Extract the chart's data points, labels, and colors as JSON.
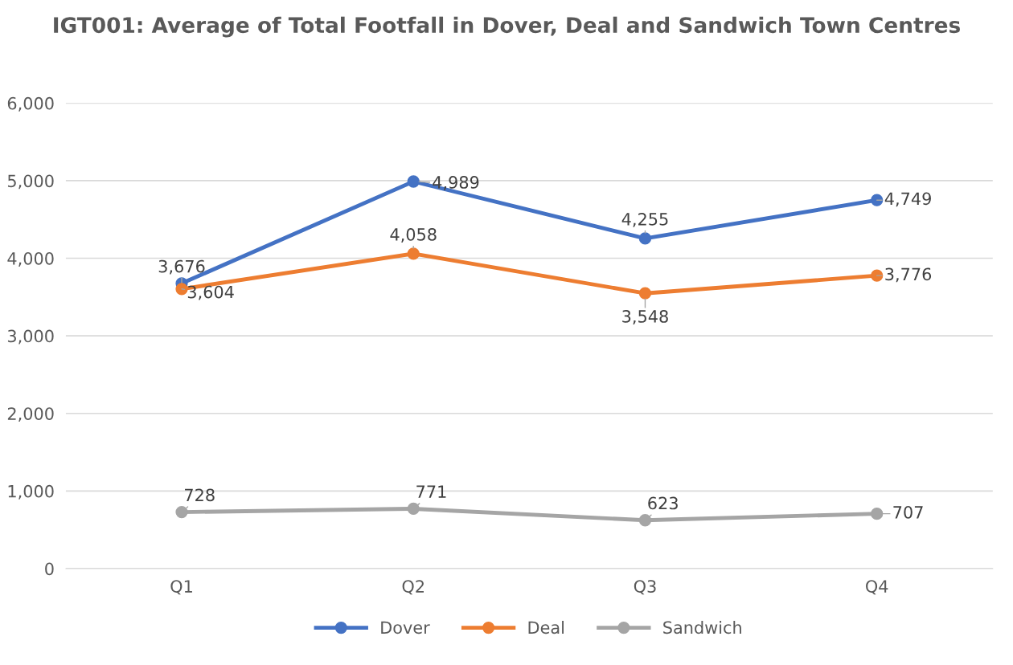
{
  "chart_data": {
    "type": "line",
    "title": "IGT001: Average of Total Footfall in Dover, Deal and Sandwich Town Centres",
    "categories": [
      "Q1",
      "Q2",
      "Q3",
      "Q4"
    ],
    "series": [
      {
        "name": "Dover",
        "color": "#4472c4",
        "values": [
          3676,
          4989,
          4255,
          4749
        ],
        "value_labels": [
          "3,676",
          "4,989",
          "4,255",
          "4,749"
        ]
      },
      {
        "name": "Deal",
        "color": "#ed7d31",
        "values": [
          3604,
          4058,
          3548,
          3776
        ],
        "value_labels": [
          "3,604",
          "4,058",
          "3,548",
          "3,776"
        ]
      },
      {
        "name": "Sandwich",
        "color": "#a5a5a5",
        "values": [
          728,
          771,
          623,
          707
        ],
        "value_labels": [
          "728",
          "771",
          "623",
          "707"
        ]
      }
    ],
    "ylim": [
      0,
      6000
    ],
    "yticks": [
      {
        "value": 0,
        "label": "0"
      },
      {
        "value": 1000,
        "label": "1,000"
      },
      {
        "value": 2000,
        "label": "2,000"
      },
      {
        "value": 3000,
        "label": "3,000"
      },
      {
        "value": 4000,
        "label": "4,000"
      },
      {
        "value": 5000,
        "label": "5,000"
      },
      {
        "value": 6000,
        "label": "6,000"
      }
    ],
    "grid": "y",
    "legend": "bottom",
    "marker": "circle",
    "line_style": "solid"
  }
}
